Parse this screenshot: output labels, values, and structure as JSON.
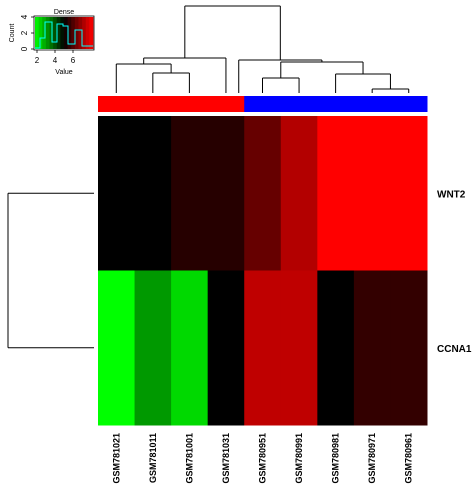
{
  "chart_data": {
    "type": "heatmap",
    "columns": [
      "GSM781021",
      "GSM781011",
      "GSM781001",
      "GSM781031",
      "GSM780951",
      "GSM780991",
      "GSM780981",
      "GSM780971",
      "GSM780961"
    ],
    "rows": [
      "WNT2",
      "CCNA1"
    ],
    "values": [
      [
        0.0,
        0.0,
        0.15,
        0.15,
        0.4,
        0.7,
        1.0,
        1.0,
        1.0
      ],
      [
        -1.0,
        -0.6,
        -0.85,
        0.0,
        0.75,
        0.75,
        0.0,
        0.2,
        0.2
      ]
    ],
    "column_groups": [
      "red",
      "red",
      "red",
      "red",
      "blue",
      "blue",
      "blue",
      "blue",
      "blue"
    ],
    "group_colors": {
      "red": "#ff0000",
      "blue": "#0000ff"
    },
    "color_scale": {
      "low": "#00ff00",
      "mid": "#000000",
      "high": "#ff0000"
    },
    "legend": {
      "title": "Dense",
      "xlabel": "Value",
      "ylabel": "Count",
      "x_ticks": [
        "2",
        "4",
        "6"
      ],
      "y_ticks": [
        "0",
        "2",
        "4"
      ]
    },
    "column_dendrogram": true,
    "row_dendrogram": true
  }
}
